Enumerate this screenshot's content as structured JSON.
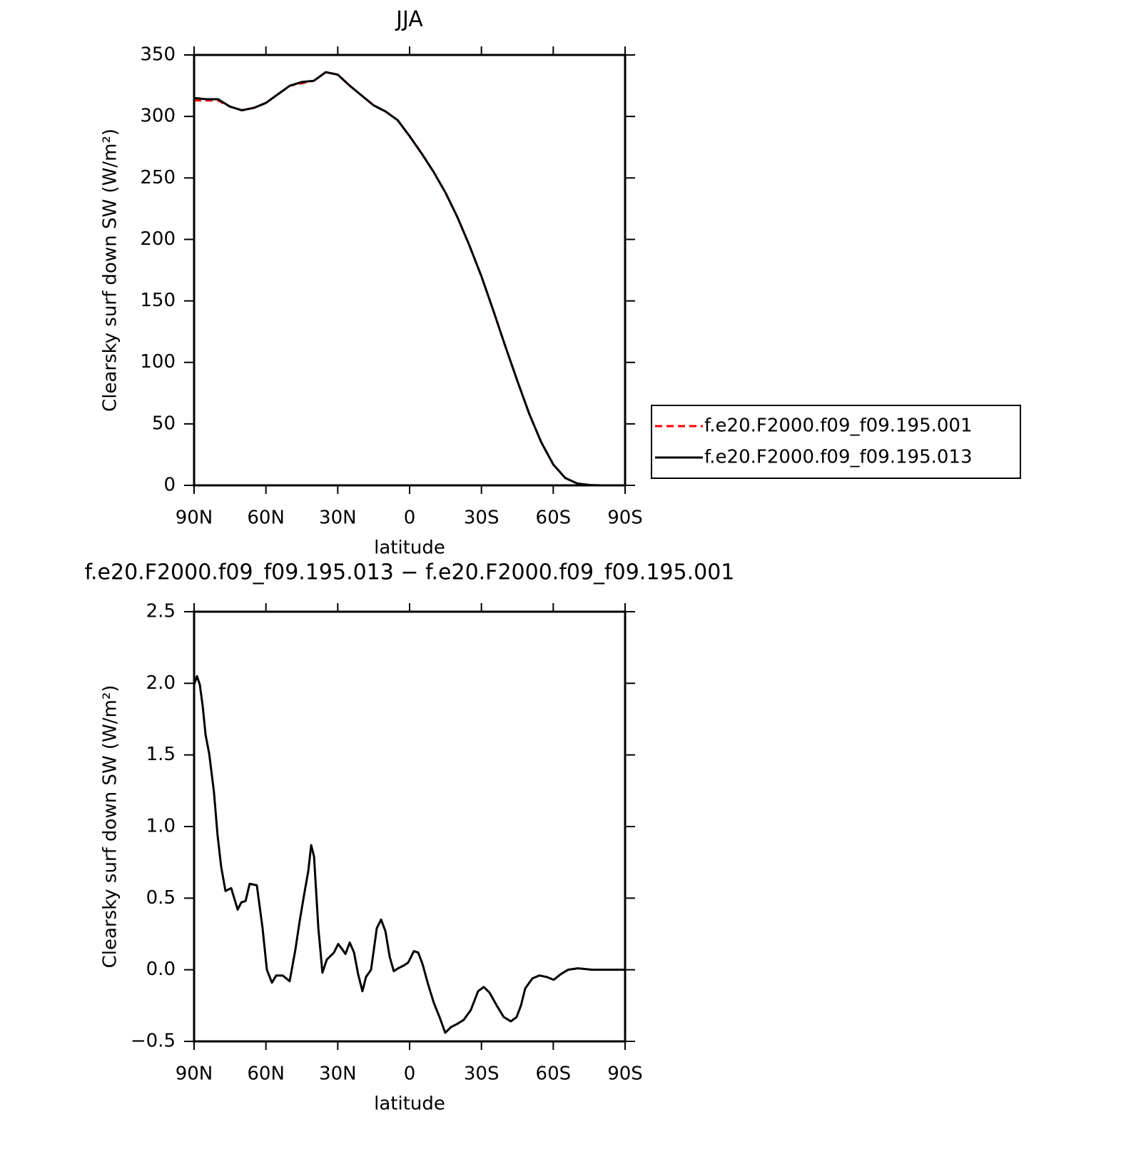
{
  "chart_data": [
    {
      "type": "line",
      "title": "JJA",
      "xlabel": "latitude",
      "ylabel": "Clearsky surf down SW (W/m²)",
      "x": [
        90,
        85,
        80,
        75,
        70,
        65,
        60,
        55,
        50,
        45,
        40,
        35,
        30,
        25,
        20,
        15,
        10,
        5,
        0,
        -5,
        -10,
        -15,
        -20,
        -25,
        -30,
        -35,
        -40,
        -45,
        -50,
        -55,
        -60,
        -65,
        -70,
        -75,
        -80,
        -85,
        -90
      ],
      "series": [
        {
          "name": "f.e20.F2000.f09_f09.195.001",
          "color": "#ff0000",
          "line_style": "dashed",
          "values": [
            313,
            313,
            313,
            308,
            305,
            307,
            311,
            318,
            325,
            327,
            329,
            336,
            334,
            325,
            317,
            309,
            304,
            297,
            284,
            270,
            255,
            238,
            218,
            195,
            170,
            142,
            113,
            85,
            58,
            35,
            17,
            6,
            1.5,
            0.3,
            0,
            0,
            0
          ]
        },
        {
          "name": "f.e20.F2000.f09_f09.195.013",
          "color": "#000000",
          "line_style": "solid",
          "values": [
            315,
            314,
            314,
            308,
            305,
            307,
            311,
            318,
            325,
            328,
            329,
            336,
            334,
            325,
            317,
            309,
            304,
            297,
            284,
            270,
            255,
            238,
            218,
            195,
            170,
            142,
            113,
            85,
            58,
            35,
            17,
            6,
            1.5,
            0.3,
            0,
            0,
            0
          ]
        }
      ],
      "xlim": [
        90,
        -90
      ],
      "xticks": [
        {
          "value": 90,
          "label": "90N"
        },
        {
          "value": 60,
          "label": "60N"
        },
        {
          "value": 30,
          "label": "30N"
        },
        0,
        {
          "value": -30,
          "label": "30S"
        },
        {
          "value": -60,
          "label": "60S"
        },
        {
          "value": -90,
          "label": "90S"
        }
      ],
      "ylim": [
        0,
        350
      ],
      "yticks": [
        0,
        50,
        100,
        150,
        200,
        250,
        300,
        350
      ],
      "legend": "outside-right"
    },
    {
      "type": "line",
      "title": "f.e20.F2000.f09_f09.195.013 − f.e20.F2000.f09_f09.195.001",
      "xlabel": "latitude",
      "ylabel": "Clearsky surf down SW (W/m²)",
      "x": [
        90,
        88.8,
        87.6,
        86.4,
        85.2,
        83.7,
        81.7,
        80.2,
        78.7,
        76.9,
        74.5,
        71.8,
        70.3,
        68.5,
        66.8,
        63.8,
        61.4,
        59.6,
        57.5,
        55.7,
        53,
        50.1,
        47.7,
        45.9,
        44.1,
        42.3,
        41.1,
        39.9,
        38.1,
        36.4,
        34.6,
        33.4,
        31.6,
        29.8,
        28,
        26.8,
        25,
        23.2,
        21.5,
        19.7,
        18.2,
        16.1,
        13.7,
        11.9,
        10.1,
        8.3,
        6.6,
        4.8,
        2.4,
        0.6,
        -1.8,
        -3.6,
        -5.4,
        -7.7,
        -10.1,
        -12.5,
        -14.9,
        -17.3,
        -19.7,
        -22.6,
        -25.6,
        -28.6,
        -31,
        -33.4,
        -36.4,
        -39.3,
        -42.3,
        -44.7,
        -46.5,
        -48.3,
        -51.3,
        -54.2,
        -57.2,
        -60.2,
        -63.2,
        -66.2,
        -70.3,
        -76.3,
        -90
      ],
      "values": [
        1.99,
        2.05,
        1.99,
        1.84,
        1.64,
        1.51,
        1.24,
        0.94,
        0.72,
        0.55,
        0.57,
        0.42,
        0.47,
        0.48,
        0.6,
        0.59,
        0.29,
        0,
        -0.09,
        -0.04,
        -0.04,
        -0.08,
        0.14,
        0.34,
        0.52,
        0.69,
        0.87,
        0.79,
        0.29,
        -0.02,
        0.07,
        0.09,
        0.12,
        0.18,
        0.14,
        0.11,
        0.19,
        0.12,
        -0.03,
        -0.15,
        -0.05,
        0,
        0.29,
        0.35,
        0.27,
        0.09,
        -0.01,
        0.01,
        0.03,
        0.05,
        0.13,
        0.12,
        0.04,
        -0.1,
        -0.23,
        -0.33,
        -0.44,
        -0.4,
        -0.38,
        -0.35,
        -0.28,
        -0.15,
        -0.12,
        -0.16,
        -0.25,
        -0.33,
        -0.36,
        -0.33,
        -0.25,
        -0.13,
        -0.06,
        -0.04,
        -0.05,
        -0.07,
        -0.03,
        0,
        0.01,
        0,
        0
      ],
      "color": "#000000",
      "xlim": [
        90,
        -90
      ],
      "xticks": [
        {
          "value": 90,
          "label": "90N"
        },
        {
          "value": 60,
          "label": "60N"
        },
        {
          "value": 30,
          "label": "30N"
        },
        0,
        {
          "value": -30,
          "label": "30S"
        },
        {
          "value": -60,
          "label": "60S"
        },
        {
          "value": -90,
          "label": "90S"
        }
      ],
      "ylim": [
        -0.5,
        2.5
      ],
      "yticks": [
        {
          "value": -0.5,
          "label": "−0.5"
        },
        {
          "value": 0,
          "label": "0.0"
        },
        0.5,
        {
          "value": 1,
          "label": "1.0"
        },
        1.5,
        {
          "value": 2,
          "label": "2.0"
        },
        2.5
      ]
    }
  ]
}
